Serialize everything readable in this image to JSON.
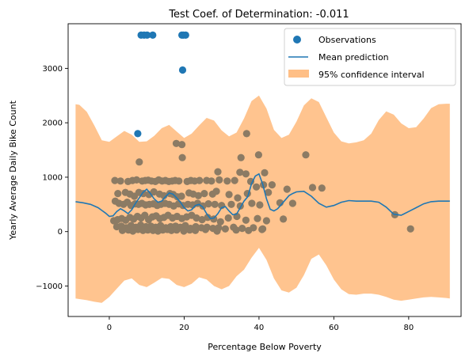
{
  "chart_data": {
    "type": "scatter",
    "title": "Test Coef. of Determination: -0.011",
    "xlabel": "Percentage Below Poverty",
    "ylabel": "Yearly Average Daily Bike Count",
    "xlim": [
      -11,
      94
    ],
    "ylim": [
      -1560,
      3820
    ],
    "xticks": [
      0,
      20,
      40,
      60,
      80
    ],
    "yticks": [
      -1000,
      0,
      1000,
      2000,
      3000
    ],
    "xtick_labels": [
      "0",
      "20",
      "40",
      "60",
      "80"
    ],
    "ytick_labels": [
      "−1000",
      "0",
      "1000",
      "2000",
      "3000"
    ],
    "legend_position": "upper right",
    "colors": {
      "observations": "#1f77b4",
      "mean": "#1f77b4",
      "interval": "#ffbf86",
      "overlap": "#8c7b64"
    },
    "series": [
      {
        "name": "Observations",
        "kind": "scatter",
        "x": [
          8.5,
          9.3,
          10.1,
          11.6,
          19.4,
          19.8,
          20.4,
          19.6,
          7.6,
          17.9,
          19.4,
          36.7,
          39.9,
          52.5,
          8.0,
          19.5,
          35.2,
          41.5,
          34.9,
          36.5,
          29.0,
          1.5,
          3.0,
          5.0,
          6.2,
          7.3,
          8.8,
          9.6,
          10.4,
          11.3,
          12.3,
          13.2,
          14.1,
          15.0,
          15.9,
          16.8,
          17.6,
          18.6,
          20.8,
          21.8,
          22.8,
          24.1,
          26.0,
          27.3,
          29.4,
          31.5,
          33.5,
          37.8,
          41.2,
          43.5,
          2.3,
          4.3,
          5.5,
          6.7,
          7.9,
          9.1,
          10.6,
          11.9,
          13.4,
          14.6,
          16.2,
          17.1,
          18.2,
          19.3,
          21.3,
          22.4,
          23.8,
          25.4,
          27.6,
          28.6,
          32.0,
          34.3,
          36.9,
          39.3,
          42.5,
          49.0,
          54.3,
          56.8,
          47.5,
          1.6,
          2.6,
          3.8,
          4.8,
          5.8,
          6.9,
          7.8,
          8.7,
          9.7,
          10.7,
          11.8,
          12.8,
          13.8,
          14.9,
          16.0,
          17.2,
          18.5,
          19.7,
          21.0,
          22.3,
          23.6,
          25.0,
          26.5,
          28.2,
          30.0,
          32.6,
          35.0,
          38.1,
          40.2,
          45.6,
          1.2,
          2.2,
          3.3,
          4.4,
          5.5,
          6.5,
          7.5,
          8.5,
          9.5,
          10.5,
          11.5,
          12.5,
          13.5,
          14.6,
          15.7,
          16.9,
          18.1,
          19.4,
          20.7,
          22.0,
          23.3,
          24.8,
          26.3,
          27.9,
          29.7,
          31.8,
          34.1,
          36.5,
          39.6,
          42.0,
          46.5,
          2.0,
          3.2,
          4.5,
          5.8,
          7.1,
          8.4,
          9.8,
          11.1,
          12.4,
          13.7,
          15.1,
          16.4,
          17.7,
          19.0,
          20.3,
          21.7,
          23.1,
          24.6,
          26.1,
          27.7,
          29.2,
          31.0,
          33.2,
          35.5,
          38.5,
          41.0,
          3.5,
          5.1,
          6.3,
          7.7,
          9.0,
          10.3,
          11.7,
          13.0,
          14.3,
          15.5,
          16.6,
          18.0,
          19.9,
          21.5,
          23.0,
          25.7,
          28.8,
          33.9,
          37.2,
          40.8,
          76.3,
          80.5
        ],
        "y": [
          3610,
          3610,
          3610,
          3610,
          3610,
          3610,
          3610,
          2970,
          1800,
          1620,
          1600,
          1800,
          1410,
          1410,
          1280,
          1360,
          1360,
          1080,
          1090,
          1060,
          1100,
          940,
          930,
          920,
          940,
          950,
          930,
          940,
          945,
          930,
          920,
          950,
          930,
          940,
          920,
          930,
          940,
          930,
          920,
          940,
          930,
          940,
          940,
          930,
          950,
          930,
          940,
          920,
          860,
          860,
          700,
          720,
          690,
          650,
          720,
          700,
          680,
          730,
          690,
          660,
          700,
          680,
          640,
          650,
          710,
          690,
          660,
          700,
          690,
          740,
          680,
          620,
          700,
          820,
          720,
          520,
          810,
          800,
          780,
          560,
          520,
          500,
          540,
          480,
          510,
          500,
          520,
          490,
          500,
          510,
          480,
          500,
          520,
          500,
          470,
          510,
          480,
          500,
          490,
          520,
          470,
          510,
          500,
          480,
          500,
          470,
          520,
          490,
          530,
          200,
          220,
          240,
          210,
          260,
          230,
          280,
          250,
          300,
          220,
          270,
          290,
          240,
          260,
          300,
          250,
          280,
          240,
          270,
          300,
          250,
          220,
          260,
          230,
          180,
          250,
          280,
          210,
          240,
          200,
          230,
          90,
          100,
          70,
          110,
          80,
          120,
          90,
          100,
          80,
          110,
          70,
          90,
          100,
          80,
          110,
          60,
          90,
          70,
          80,
          60,
          70,
          50,
          80,
          60,
          70,
          50,
          20,
          30,
          10,
          40,
          20,
          30,
          20,
          10,
          30,
          40,
          20,
          30,
          10,
          30,
          20,
          40,
          10,
          30,
          20,
          40,
          310,
          50
        ]
      },
      {
        "name": "Mean prediction",
        "kind": "line",
        "x": [
          -9,
          -7,
          -5,
          -3,
          -1,
          0,
          1,
          2,
          3,
          4,
          5,
          6,
          7,
          8,
          9,
          10,
          11,
          12,
          13,
          14,
          15,
          16,
          17,
          18,
          19,
          20,
          21,
          22,
          23,
          24,
          25,
          26,
          27,
          28,
          29,
          30,
          31,
          32,
          33,
          34,
          35,
          36,
          37,
          38,
          39,
          40,
          41,
          42,
          43,
          44,
          45,
          46,
          47,
          48,
          49,
          50,
          52,
          54,
          56,
          58,
          60,
          62,
          64,
          66,
          68,
          70,
          72,
          74,
          76,
          78,
          80,
          82,
          84,
          86,
          88,
          91
        ],
        "y": [
          550,
          530,
          500,
          440,
          340,
          280,
          290,
          370,
          420,
          380,
          330,
          400,
          520,
          620,
          720,
          780,
          700,
          600,
          540,
          560,
          640,
          710,
          690,
          620,
          540,
          440,
          380,
          400,
          480,
          500,
          450,
          330,
          240,
          250,
          330,
          440,
          460,
          380,
          310,
          320,
          440,
          560,
          640,
          880,
          1020,
          1060,
          870,
          600,
          410,
          380,
          420,
          500,
          580,
          660,
          700,
          730,
          740,
          650,
          520,
          450,
          480,
          540,
          570,
          560,
          560,
          560,
          540,
          450,
          320,
          300,
          370,
          440,
          510,
          550,
          560,
          560
        ]
      },
      {
        "name": "95% confidence interval",
        "kind": "band",
        "x": [
          -9,
          -8,
          -6,
          -4,
          -2,
          0,
          2,
          4,
          6,
          8,
          10,
          12,
          14,
          16,
          18,
          20,
          22,
          24,
          26,
          28,
          30,
          32,
          34,
          36,
          38,
          40,
          42,
          44,
          46,
          48,
          50,
          52,
          54,
          56,
          58,
          60,
          62,
          64,
          66,
          68,
          70,
          72,
          74,
          76,
          78,
          80,
          82,
          84,
          86,
          88,
          90,
          91
        ],
        "lower": [
          -1230,
          -1240,
          -1260,
          -1290,
          -1310,
          -1200,
          -1050,
          -900,
          -860,
          -980,
          -1020,
          -940,
          -850,
          -870,
          -980,
          -1020,
          -960,
          -840,
          -880,
          -1000,
          -1060,
          -1000,
          -820,
          -700,
          -480,
          -300,
          -520,
          -860,
          -1080,
          -1120,
          -1030,
          -800,
          -500,
          -420,
          -620,
          -880,
          -1060,
          -1150,
          -1160,
          -1140,
          -1140,
          -1160,
          -1200,
          -1250,
          -1270,
          -1250,
          -1230,
          -1210,
          -1200,
          -1210,
          -1220,
          -1230
        ],
        "upper": [
          2340,
          2330,
          2200,
          1950,
          1680,
          1650,
          1750,
          1850,
          1780,
          1650,
          1660,
          1760,
          1900,
          1960,
          1840,
          1720,
          1800,
          1950,
          2090,
          2040,
          1860,
          1750,
          1820,
          2080,
          2400,
          2500,
          2260,
          1870,
          1720,
          1780,
          2020,
          2320,
          2450,
          2380,
          2100,
          1820,
          1660,
          1620,
          1640,
          1680,
          1800,
          2050,
          2210,
          2150,
          1990,
          1900,
          1920,
          2080,
          2270,
          2340,
          2350,
          2350
        ]
      }
    ]
  }
}
